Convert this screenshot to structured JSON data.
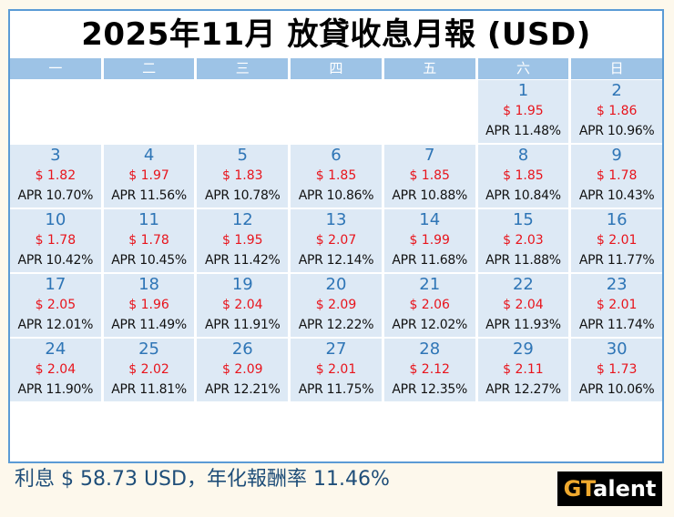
{
  "title": "2025年11月 放貸收息月報 (USD)",
  "weekdays": [
    "一",
    "二",
    "三",
    "四",
    "五",
    "六",
    "日"
  ],
  "leading_blank_days": 5,
  "days": [
    {
      "day": "1",
      "amount": "$ 1.95",
      "apr": "APR 11.48%"
    },
    {
      "day": "2",
      "amount": "$ 1.86",
      "apr": "APR 10.96%"
    },
    {
      "day": "3",
      "amount": "$ 1.82",
      "apr": "APR 10.70%"
    },
    {
      "day": "4",
      "amount": "$ 1.97",
      "apr": "APR 11.56%"
    },
    {
      "day": "5",
      "amount": "$ 1.83",
      "apr": "APR 10.78%"
    },
    {
      "day": "6",
      "amount": "$ 1.85",
      "apr": "APR 10.86%"
    },
    {
      "day": "7",
      "amount": "$ 1.85",
      "apr": "APR 10.88%"
    },
    {
      "day": "8",
      "amount": "$ 1.85",
      "apr": "APR 10.84%"
    },
    {
      "day": "9",
      "amount": "$ 1.78",
      "apr": "APR 10.43%"
    },
    {
      "day": "10",
      "amount": "$ 1.78",
      "apr": "APR 10.42%"
    },
    {
      "day": "11",
      "amount": "$ 1.78",
      "apr": "APR 10.45%"
    },
    {
      "day": "12",
      "amount": "$ 1.95",
      "apr": "APR 11.42%"
    },
    {
      "day": "13",
      "amount": "$ 2.07",
      "apr": "APR 12.14%"
    },
    {
      "day": "14",
      "amount": "$ 1.99",
      "apr": "APR 11.68%"
    },
    {
      "day": "15",
      "amount": "$ 2.03",
      "apr": "APR 11.88%"
    },
    {
      "day": "16",
      "amount": "$ 2.01",
      "apr": "APR 11.77%"
    },
    {
      "day": "17",
      "amount": "$ 2.05",
      "apr": "APR 12.01%"
    },
    {
      "day": "18",
      "amount": "$ 1.96",
      "apr": "APR 11.49%"
    },
    {
      "day": "19",
      "amount": "$ 2.04",
      "apr": "APR 11.91%"
    },
    {
      "day": "20",
      "amount": "$ 2.09",
      "apr": "APR 12.22%"
    },
    {
      "day": "21",
      "amount": "$ 2.06",
      "apr": "APR 12.02%"
    },
    {
      "day": "22",
      "amount": "$ 2.04",
      "apr": "APR 11.93%"
    },
    {
      "day": "23",
      "amount": "$ 2.01",
      "apr": "APR 11.74%"
    },
    {
      "day": "24",
      "amount": "$ 2.04",
      "apr": "APR 11.90%"
    },
    {
      "day": "25",
      "amount": "$ 2.02",
      "apr": "APR 11.81%"
    },
    {
      "day": "26",
      "amount": "$ 2.09",
      "apr": "APR 12.21%"
    },
    {
      "day": "27",
      "amount": "$ 2.01",
      "apr": "APR 11.75%"
    },
    {
      "day": "28",
      "amount": "$ 2.12",
      "apr": "APR 12.35%"
    },
    {
      "day": "29",
      "amount": "$ 2.11",
      "apr": "APR 12.27%"
    },
    {
      "day": "30",
      "amount": "$ 1.73",
      "apr": "APR 10.06%"
    }
  ],
  "summary": "利息 $ 58.73 USD，年化報酬率 11.46%",
  "logo": {
    "highlight": "GT",
    "rest": "alent"
  },
  "colors": {
    "background": "#fdf8ec",
    "frame_border": "#5b9bd5",
    "header_bg": "#9dc3e6",
    "cell_bg": "#dde9f5",
    "day_number": "#2e75b6",
    "amount": "#e8141c",
    "summary_text": "#1f4e79",
    "logo_accent": "#f0a92e"
  }
}
